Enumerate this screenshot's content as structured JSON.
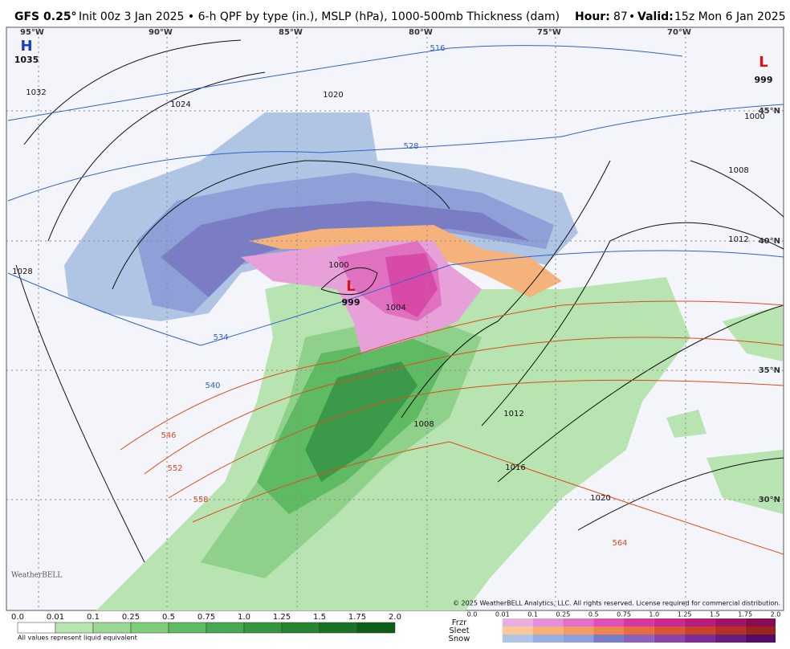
{
  "header": {
    "model": "GFS 0.25°",
    "description": "Init 00z 3 Jan 2025 • 6-h QPF by type (in.), MSLP (hPa), 1000-500mb Thickness (dam)",
    "hour_label": "Hour:",
    "hour": "87",
    "separator": "•",
    "valid_label": "Valid:",
    "valid": "15z Mon 6 Jan 2025"
  },
  "map": {
    "longitudes": [
      "95°W",
      "90°W",
      "85°W",
      "80°W",
      "75°W",
      "70°W"
    ],
    "latitudes": [
      "45°N",
      "40°N",
      "35°N",
      "30°N"
    ],
    "pressure_centers": [
      {
        "type": "H",
        "value": "1035"
      },
      {
        "type": "L",
        "value": "999"
      },
      {
        "type": "L",
        "value": "999"
      }
    ],
    "isobar_labels": [
      "1032",
      "1024",
      "1028",
      "1020",
      "1000",
      "1004",
      "1008",
      "1012",
      "1016",
      "1020",
      "1008",
      "1012",
      "1000"
    ],
    "thickness_labels": [
      "516",
      "528",
      "534",
      "540",
      "546",
      "552",
      "558",
      "564"
    ],
    "credit": "WeatherBELL",
    "copyright": "© 2025 WeatherBELL Analytics, LLC. All rights reserved. License required for commercial distribution."
  },
  "legend": {
    "rain_ticks": [
      "0.0",
      "0.01",
      "0.1",
      "0.25",
      "0.5",
      "0.75",
      "1.0",
      "1.25",
      "1.5",
      "1.75",
      "2.0"
    ],
    "note": "All values represent liquid equivalent",
    "types": [
      "Frzr",
      "Sleet",
      "Snow"
    ],
    "type_ticks": [
      "0.0",
      "0.01",
      "0.1",
      "0.25",
      "0.5",
      "0.75",
      "1.0",
      "1.25",
      "1.5",
      "1.75",
      "2.0"
    ]
  }
}
